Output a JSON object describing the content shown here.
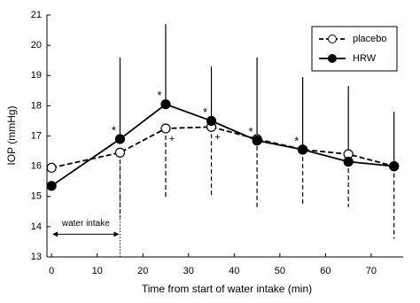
{
  "chart_data": {
    "type": "line",
    "y_label": "IOP (mmHg)",
    "x_label": "Time from start of water intake (min)",
    "x": [
      0,
      15,
      25,
      35,
      45,
      55,
      65,
      75
    ],
    "xlim": [
      -1,
      77
    ],
    "xticks": [
      0,
      10,
      20,
      30,
      40,
      50,
      60,
      70
    ],
    "ylim": [
      13,
      21
    ],
    "yticks": [
      13,
      14,
      15,
      16,
      17,
      18,
      19,
      20,
      21
    ],
    "series": [
      {
        "name": "placebo",
        "color": "#000000",
        "dashed": true,
        "marker_fill": "#ffffff",
        "error_direction": "down",
        "values": [
          15.95,
          16.45,
          17.25,
          17.3,
          16.9,
          16.55,
          16.4,
          16.0
        ],
        "errors": [
          null,
          2.15,
          2.3,
          2.3,
          2.25,
          1.85,
          1.75,
          2.4
        ]
      },
      {
        "name": "HRW",
        "color": "#000000",
        "dashed": false,
        "marker_fill": "#000000",
        "error_direction": "up",
        "values": [
          15.35,
          16.9,
          18.05,
          17.5,
          16.85,
          16.55,
          16.15,
          16.0
        ],
        "errors": [
          null,
          2.7,
          2.65,
          1.8,
          2.75,
          2.4,
          2.5,
          1.8
        ]
      }
    ],
    "annotations": [
      {
        "text": "*",
        "x": 15
      },
      {
        "text": "*",
        "x": 25
      },
      {
        "text": "*",
        "x": 35
      },
      {
        "text": "*",
        "x": 45
      },
      {
        "text": "*",
        "x": 55
      },
      {
        "text": "+",
        "x": 25
      },
      {
        "text": "+",
        "x": 35
      }
    ],
    "water_intake": {
      "label": "water intake",
      "start": 0,
      "end": 15
    },
    "legend": "top-right"
  }
}
